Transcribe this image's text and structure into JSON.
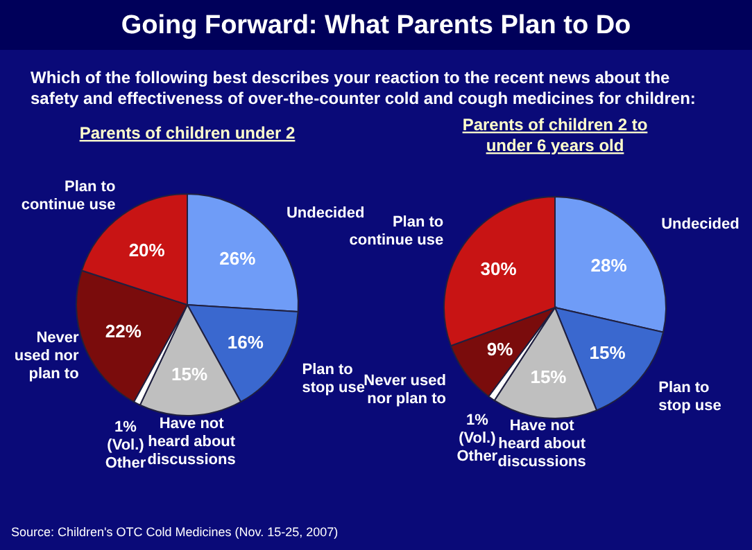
{
  "chart_data": [
    {
      "type": "other",
      "title": "Going Forward: What Parents Plan to Do",
      "subtitle": "Which of the following best describes your reaction to the recent news about the safety and effectiveness of over-the-counter cold and cough medicines for children:",
      "annotations": [
        "Source: Children's OTC Cold Medicines (Nov. 15-25, 2007)"
      ]
    },
    {
      "type": "pie",
      "title": "Parents of children under 2",
      "categories": [
        "Undecided",
        "Plan to\nstop use",
        "Have not\nheard about\ndiscussions",
        "(Vol.)\nOther",
        "Never\nused nor\nplan to",
        "Plan to\ncontinue use"
      ],
      "values": [
        26,
        16,
        15,
        1,
        22,
        20
      ],
      "colors": [
        "#6f9cf7",
        "#3a68cf",
        "#bfbfbf",
        "#ffffff",
        "#7a0c0c",
        "#c81414"
      ],
      "value_labels": [
        "26%",
        "16%",
        "15%",
        "1%",
        "22%",
        "20%"
      ]
    },
    {
      "type": "pie",
      "title": "Parents of children 2 to\nunder 6 years old",
      "categories": [
        "Undecided",
        "Plan to\nstop use",
        "Have not\nheard about\ndiscussions",
        "(Vol.)\nOther",
        "Never used\nnor  plan to",
        "Plan to\ncontinue use"
      ],
      "values": [
        28,
        15,
        15,
        1,
        9,
        30
      ],
      "colors": [
        "#6f9cf7",
        "#3a68cf",
        "#bfbfbf",
        "#ffffff",
        "#7a0c0c",
        "#c81414"
      ],
      "value_labels": [
        "28%",
        "15%",
        "15%",
        "1%",
        "9%",
        "30%"
      ]
    }
  ]
}
